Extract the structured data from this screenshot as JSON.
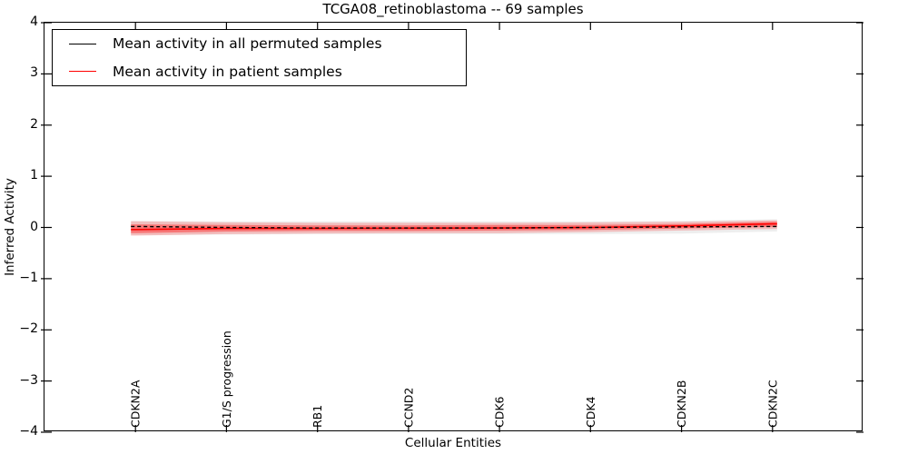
{
  "figure": {
    "background": "#ffffff",
    "frame_color": "#000000"
  },
  "chart_data": {
    "type": "line",
    "title": "TCGA08_retinoblastoma -- 69 samples",
    "xlabel": "Cellular Entities",
    "ylabel": "Inferred Activity",
    "xlim": [
      0,
      9
    ],
    "ylim": [
      -4,
      4
    ],
    "grid": false,
    "categories": [
      "CDKN2A",
      "G1/S progression",
      "RB1",
      "CCND2",
      "CDK6",
      "CDK4",
      "CDKN2B",
      "CDKN2C"
    ],
    "x_positions": [
      1,
      2,
      3,
      4,
      5,
      6,
      7,
      8
    ],
    "ytick_values": [
      4,
      3,
      2,
      1,
      0,
      -1,
      -2,
      -3,
      -4
    ],
    "ytick_labels": [
      "4",
      "3",
      "2",
      "1",
      "0",
      "−1",
      "−2",
      "−3",
      "−4"
    ],
    "series": [
      {
        "name": "Mean activity in all permuted samples",
        "color": "#000000",
        "style": "dashed",
        "values": [
          0.02,
          0.0,
          -0.01,
          -0.01,
          -0.01,
          0.0,
          0.01,
          0.02
        ]
      },
      {
        "name": "Mean activity in patient samples",
        "color": "#ff0000",
        "style": "solid",
        "values": [
          -0.04,
          -0.02,
          -0.02,
          -0.015,
          -0.01,
          0.0,
          0.03,
          0.07
        ]
      }
    ],
    "bands": [
      {
        "name": "permuted-range",
        "color": "rgba(90,90,90,0.10)",
        "low": [
          -0.15,
          -0.14,
          -0.13,
          -0.13,
          -0.13,
          -0.13,
          -0.12,
          -0.08
        ],
        "high": [
          0.13,
          0.12,
          0.12,
          0.12,
          0.12,
          0.12,
          0.13,
          0.16
        ]
      },
      {
        "name": "patient-outer",
        "color": "rgba(255,20,20,0.22)",
        "low": [
          -0.16,
          -0.13,
          -0.12,
          -0.11,
          -0.11,
          -0.09,
          -0.06,
          -0.03
        ],
        "high": [
          0.12,
          0.1,
          0.09,
          0.09,
          0.09,
          0.1,
          0.11,
          0.14
        ]
      },
      {
        "name": "patient-inner",
        "color": "rgba(255,20,20,0.42)",
        "low": [
          -0.11,
          -0.08,
          -0.07,
          -0.07,
          -0.06,
          -0.05,
          -0.02,
          0.01
        ],
        "high": [
          0.06,
          0.05,
          0.04,
          0.04,
          0.05,
          0.05,
          0.07,
          0.11
        ]
      }
    ],
    "legend": {
      "position": "upper left",
      "entries": [
        "Mean activity in all permuted samples",
        "Mean activity in patient samples"
      ]
    }
  }
}
